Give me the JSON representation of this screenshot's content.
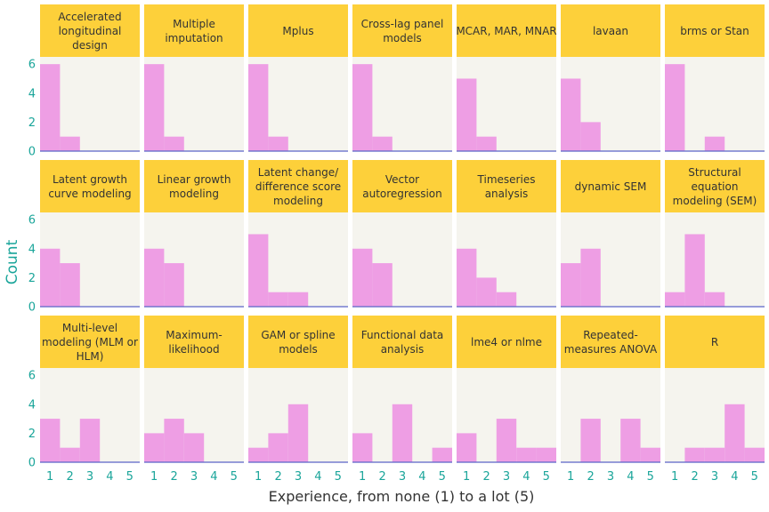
{
  "chart_data": {
    "type": "bar",
    "xlabel": "Experience, from none (1) to a lot (5)",
    "ylabel": "Count",
    "x_ticks": [
      1,
      2,
      3,
      4,
      5
    ],
    "y_ticks": [
      0,
      2,
      4,
      6
    ],
    "ylim": [
      0,
      6.5
    ],
    "xlim": [
      0.5,
      5.5
    ],
    "grid": false,
    "colors": {
      "bar": "#ee9ee4",
      "strip": "#fdd03a",
      "panel": "#f5f4ee",
      "baseline": "#5a64c8",
      "tick_text": "#1aa59a",
      "strip_text": "#333333"
    },
    "panels": [
      {
        "title": [
          "Accelerated",
          "longitudinal",
          "design"
        ],
        "values": [
          6,
          1,
          0,
          0,
          0
        ]
      },
      {
        "title": [
          "Multiple",
          "imputation"
        ],
        "values": [
          6,
          1,
          0,
          0,
          0
        ]
      },
      {
        "title": [
          "Mplus"
        ],
        "values": [
          6,
          1,
          0,
          0,
          0
        ]
      },
      {
        "title": [
          "Cross-lag panel",
          "models"
        ],
        "values": [
          6,
          1,
          0,
          0,
          0
        ]
      },
      {
        "title": [
          "MCAR, MAR, MNAR"
        ],
        "values": [
          5,
          1,
          0,
          0,
          0
        ]
      },
      {
        "title": [
          "lavaan"
        ],
        "values": [
          5,
          2,
          0,
          0,
          0
        ]
      },
      {
        "title": [
          "brms or Stan"
        ],
        "values": [
          6,
          0,
          1,
          0,
          0
        ]
      },
      {
        "title": [
          "Latent growth",
          "curve modeling"
        ],
        "values": [
          4,
          3,
          0,
          0,
          0
        ]
      },
      {
        "title": [
          "Linear growth",
          "modeling"
        ],
        "values": [
          4,
          3,
          0,
          0,
          0
        ]
      },
      {
        "title": [
          "Latent change/",
          "difference score",
          "modeling"
        ],
        "values": [
          5,
          1,
          1,
          0,
          0
        ]
      },
      {
        "title": [
          "Vector",
          "autoregression"
        ],
        "values": [
          4,
          3,
          0,
          0,
          0
        ]
      },
      {
        "title": [
          "Timeseries",
          "analysis"
        ],
        "values": [
          4,
          2,
          1,
          0,
          0
        ]
      },
      {
        "title": [
          "dynamic SEM"
        ],
        "values": [
          3,
          4,
          0,
          0,
          0
        ]
      },
      {
        "title": [
          "Structural",
          "equation",
          "modeling (SEM)"
        ],
        "values": [
          1,
          5,
          1,
          0,
          0
        ]
      },
      {
        "title": [
          "Multi-level",
          "modeling (MLM or",
          "HLM)"
        ],
        "values": [
          3,
          1,
          3,
          0,
          0
        ]
      },
      {
        "title": [
          "Maximum-",
          "likelihood"
        ],
        "values": [
          2,
          3,
          2,
          0,
          0
        ]
      },
      {
        "title": [
          "GAM or spline",
          "models"
        ],
        "values": [
          1,
          2,
          4,
          0,
          0
        ]
      },
      {
        "title": [
          "Functional data",
          "analysis"
        ],
        "values": [
          2,
          0,
          4,
          0,
          1
        ]
      },
      {
        "title": [
          "lme4 or nlme"
        ],
        "values": [
          2,
          0,
          3,
          1,
          1
        ]
      },
      {
        "title": [
          "Repeated-",
          "measures ANOVA"
        ],
        "values": [
          0,
          3,
          0,
          3,
          1
        ]
      },
      {
        "title": [
          "R"
        ],
        "values": [
          0,
          1,
          1,
          4,
          1
        ]
      }
    ]
  }
}
